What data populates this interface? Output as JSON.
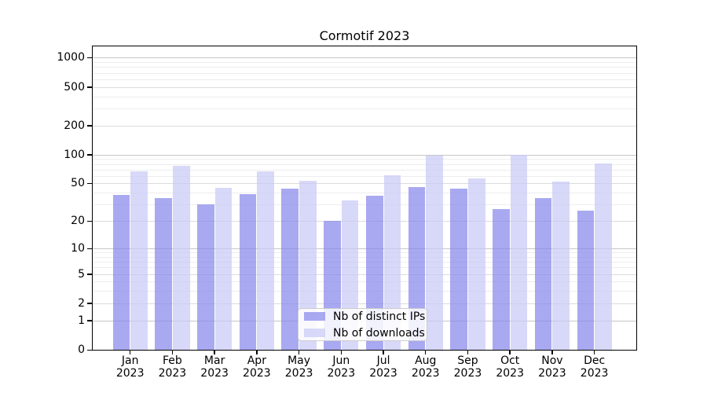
{
  "chart_data": {
    "type": "bar",
    "title": "Cormotif 2023",
    "scale": "log1p",
    "grid": true,
    "legend_position": "lower center",
    "categories": [
      "Jan",
      "Feb",
      "Mar",
      "Apr",
      "May",
      "Jun",
      "Jul",
      "Aug",
      "Sep",
      "Oct",
      "Nov",
      "Dec"
    ],
    "year": "2023",
    "series": [
      {
        "name": "Nb of distinct IPs",
        "color": "#8888ec",
        "values": [
          38,
          35,
          30,
          39,
          44,
          20,
          37,
          46,
          44,
          27,
          35,
          26
        ]
      },
      {
        "name": "Nb of downloads",
        "color": "#c9c9f6",
        "values": [
          67,
          76,
          45,
          67,
          53,
          33,
          61,
          97,
          57,
          100,
          52,
          81
        ]
      }
    ],
    "bar_opacity": 0.72,
    "yticks": [
      1000,
      500,
      200,
      100,
      50,
      20,
      10,
      5,
      2,
      1,
      0
    ],
    "ylim": [
      0,
      1306
    ],
    "xlabel": "",
    "ylabel": "",
    "grid_colors": {
      "major": "#c6c6c6",
      "mid": "#dcdcdc",
      "minor": "#ededed"
    }
  }
}
